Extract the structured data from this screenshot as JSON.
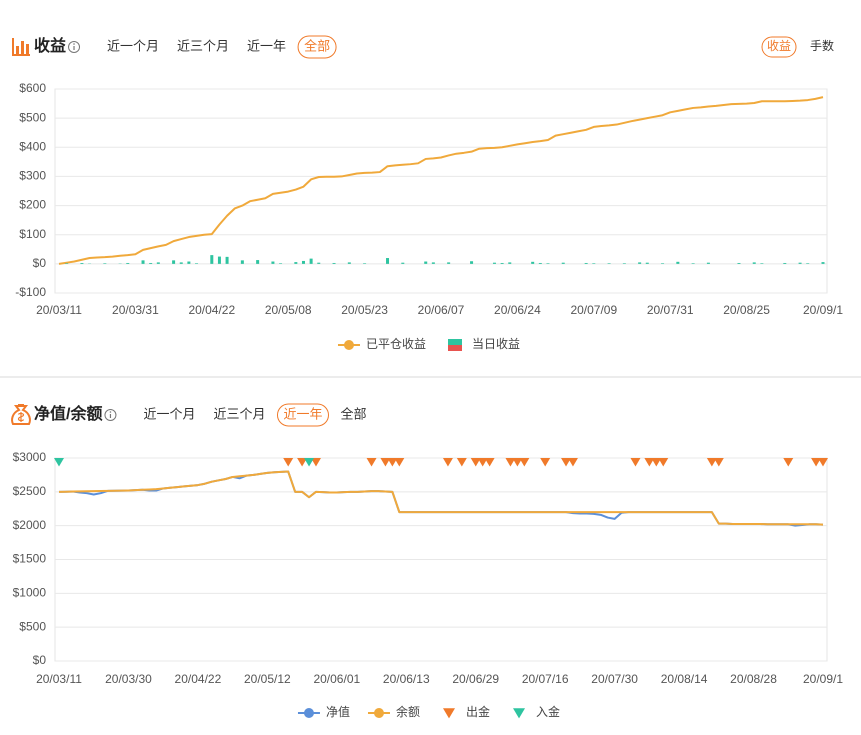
{
  "chart_data": [
    {
      "type": "line",
      "title": "收益",
      "tabs": [
        "近一个月",
        "近三个月",
        "近一年",
        "全部"
      ],
      "active_tab": "全部",
      "toggle": [
        "收益",
        "手数"
      ],
      "active_toggle": "收益",
      "categories": [
        "20/03/11",
        null,
        null,
        null,
        null,
        null,
        null,
        null,
        null,
        null,
        "20/03/31",
        null,
        null,
        null,
        null,
        null,
        null,
        null,
        null,
        null,
        "20/04/22",
        null,
        null,
        null,
        null,
        null,
        null,
        null,
        null,
        null,
        "20/05/08",
        null,
        null,
        null,
        null,
        null,
        null,
        null,
        null,
        null,
        "20/05/23",
        null,
        null,
        null,
        null,
        null,
        null,
        null,
        null,
        null,
        "20/06/07",
        null,
        null,
        null,
        null,
        null,
        null,
        null,
        null,
        null,
        "20/06/24",
        null,
        null,
        null,
        null,
        null,
        null,
        null,
        null,
        null,
        "20/07/09",
        null,
        null,
        null,
        null,
        null,
        null,
        null,
        null,
        null,
        "20/07/31",
        null,
        null,
        null,
        null,
        null,
        null,
        null,
        null,
        null,
        "20/08/25",
        null,
        null,
        null,
        null,
        null,
        null,
        null,
        null,
        null,
        "20/09/1"
      ],
      "ylim": [
        -100,
        600
      ],
      "yticks": [
        {
          "value": -100,
          "label": "-$100"
        },
        {
          "value": 0,
          "label": "$0"
        },
        {
          "value": 100,
          "label": "$100"
        },
        {
          "value": 200,
          "label": "$200"
        },
        {
          "value": 300,
          "label": "$300"
        },
        {
          "value": 400,
          "label": "$400"
        },
        {
          "value": 500,
          "label": "$500"
        },
        {
          "value": 600,
          "label": "$600"
        }
      ],
      "grid": true,
      "series": [
        {
          "name": "已平仓收益",
          "type": "line",
          "color": "#f0a93b",
          "values": [
            0,
            4,
            8,
            14,
            20,
            22,
            23,
            25,
            28,
            30,
            33,
            48,
            54,
            60,
            65,
            78,
            85,
            92,
            96,
            100,
            102,
            135,
            165,
            190,
            200,
            215,
            220,
            225,
            240,
            244,
            248,
            255,
            265,
            290,
            298,
            299,
            299,
            300,
            305,
            310,
            312,
            313,
            315,
            335,
            338,
            340,
            342,
            345,
            360,
            362,
            365,
            372,
            378,
            381,
            385,
            395,
            397,
            398,
            400,
            405,
            410,
            414,
            418,
            421,
            425,
            440,
            445,
            450,
            455,
            460,
            470,
            473,
            475,
            478,
            484,
            490,
            495,
            500,
            505,
            510,
            520,
            525,
            530,
            535,
            537,
            540,
            542,
            545,
            548,
            549,
            550,
            552,
            558,
            558,
            558,
            558,
            559,
            560,
            562,
            566,
            572
          ]
        },
        {
          "name": "当日收益",
          "type": "bar",
          "color": "#2ec4a0",
          "negative_color": "#e8534f",
          "values": [
            0,
            2,
            0,
            3,
            1,
            0,
            2,
            0,
            1,
            3,
            0,
            12,
            3,
            5,
            0,
            12,
            5,
            8,
            2,
            0,
            30,
            25,
            24,
            0,
            12,
            0,
            13,
            0,
            8,
            2,
            0,
            6,
            10,
            18,
            4,
            0,
            3,
            0,
            5,
            0,
            2,
            0,
            0,
            20,
            0,
            4,
            0,
            0,
            8,
            5,
            0,
            5,
            0,
            0,
            9,
            0,
            0,
            4,
            3,
            5,
            0,
            0,
            7,
            3,
            2,
            0,
            4,
            0,
            0,
            3,
            2,
            0,
            2,
            0,
            2,
            0,
            5,
            4,
            0,
            2,
            0,
            7,
            0,
            2,
            0,
            4,
            0,
            0,
            0,
            3,
            0,
            5,
            2,
            0,
            0,
            3,
            0,
            4,
            2,
            0,
            6
          ]
        }
      ]
    },
    {
      "type": "line",
      "title": "净值/余额",
      "tabs": [
        "近一个月",
        "近三个月",
        "近一年",
        "全部"
      ],
      "active_tab": "近一年",
      "categories": [
        "20/03/11",
        null,
        null,
        null,
        null,
        null,
        null,
        null,
        null,
        null,
        "20/03/30",
        null,
        null,
        null,
        null,
        null,
        null,
        null,
        null,
        null,
        "20/04/22",
        null,
        null,
        null,
        null,
        null,
        null,
        null,
        null,
        null,
        "20/05/12",
        null,
        null,
        null,
        null,
        null,
        null,
        null,
        null,
        null,
        "20/06/01",
        null,
        null,
        null,
        null,
        null,
        null,
        null,
        null,
        null,
        "20/06/13",
        null,
        null,
        null,
        null,
        null,
        null,
        null,
        null,
        null,
        "20/06/29",
        null,
        null,
        null,
        null,
        null,
        null,
        null,
        null,
        null,
        "20/07/16",
        null,
        null,
        null,
        null,
        null,
        null,
        null,
        null,
        null,
        "20/07/30",
        null,
        null,
        null,
        null,
        null,
        null,
        null,
        null,
        null,
        "20/08/14",
        null,
        null,
        null,
        null,
        null,
        null,
        null,
        null,
        null,
        "20/08/28",
        null,
        null,
        null,
        null,
        null,
        null,
        null,
        null,
        null,
        "20/09/1"
      ],
      "ylim": [
        0,
        3000
      ],
      "yticks": [
        {
          "value": 0,
          "label": "$0"
        },
        {
          "value": 500,
          "label": "$500"
        },
        {
          "value": 1000,
          "label": "$1000"
        },
        {
          "value": 1500,
          "label": "$1500"
        },
        {
          "value": 2000,
          "label": "$2000"
        },
        {
          "value": 2500,
          "label": "$2500"
        },
        {
          "value": 3000,
          "label": "$3000"
        }
      ],
      "grid": true,
      "series": [
        {
          "name": "净值",
          "type": "line",
          "color": "#5b8fd9",
          "values": [
            2500,
            2502,
            2504,
            2490,
            2480,
            2460,
            2480,
            2514,
            2516,
            2518,
            2520,
            2525,
            2530,
            2520,
            2520,
            2550,
            2560,
            2570,
            2580,
            2590,
            2600,
            2620,
            2650,
            2670,
            2690,
            2720,
            2700,
            2740,
            2750,
            2765,
            2780,
            2790,
            2795,
            2800,
            2500,
            2500,
            2420,
            2500,
            2495,
            2490,
            2490,
            2495,
            2500,
            2500,
            2505,
            2510,
            2510,
            2505,
            2500,
            2200,
            2200,
            2200,
            2200,
            2200,
            2200,
            2200,
            2200,
            2200,
            2200,
            2200,
            2200,
            2200,
            2200,
            2200,
            2200,
            2200,
            2200,
            2200,
            2200,
            2200,
            2200,
            2200,
            2200,
            2200,
            2185,
            2180,
            2180,
            2175,
            2160,
            2120,
            2100,
            2190,
            2200,
            2200,
            2200,
            2200,
            2200,
            2200,
            2200,
            2200,
            2200,
            2200,
            2200,
            2200,
            2200,
            2030,
            2030,
            2025,
            2025,
            2025,
            2025,
            2025,
            2020,
            2020,
            2020,
            2020,
            2000,
            2010,
            2020,
            2020,
            2015
          ]
        },
        {
          "name": "余额",
          "type": "line",
          "color": "#f0a93b",
          "values": [
            2500,
            2502,
            2504,
            2506,
            2508,
            2510,
            2512,
            2514,
            2516,
            2518,
            2520,
            2525,
            2530,
            2535,
            2540,
            2550,
            2560,
            2570,
            2580,
            2590,
            2600,
            2620,
            2650,
            2670,
            2690,
            2720,
            2730,
            2740,
            2750,
            2765,
            2780,
            2790,
            2795,
            2800,
            2500,
            2500,
            2420,
            2500,
            2495,
            2490,
            2490,
            2495,
            2500,
            2500,
            2505,
            2510,
            2510,
            2505,
            2500,
            2200,
            2200,
            2200,
            2200,
            2200,
            2200,
            2200,
            2200,
            2200,
            2200,
            2200,
            2200,
            2200,
            2200,
            2200,
            2200,
            2200,
            2200,
            2200,
            2200,
            2200,
            2200,
            2200,
            2200,
            2200,
            2200,
            2200,
            2200,
            2200,
            2200,
            2200,
            2200,
            2200,
            2200,
            2200,
            2200,
            2200,
            2200,
            2200,
            2200,
            2200,
            2200,
            2200,
            2200,
            2200,
            2200,
            2030,
            2030,
            2025,
            2025,
            2025,
            2025,
            2025,
            2020,
            2020,
            2020,
            2020,
            2020,
            2020,
            2020,
            2020,
            2015
          ]
        },
        {
          "name": "出金",
          "type": "event",
          "color": "#f07a2a",
          "x": [
            33,
            35,
            37,
            45,
            47,
            48,
            49,
            56,
            58,
            60,
            61,
            62,
            65,
            66,
            67,
            70,
            73,
            74,
            83,
            85,
            86,
            87,
            94,
            95,
            105,
            109,
            110
          ]
        },
        {
          "name": "入金",
          "type": "event",
          "color": "#2ec4a0",
          "x": [
            0,
            36
          ]
        }
      ]
    }
  ]
}
